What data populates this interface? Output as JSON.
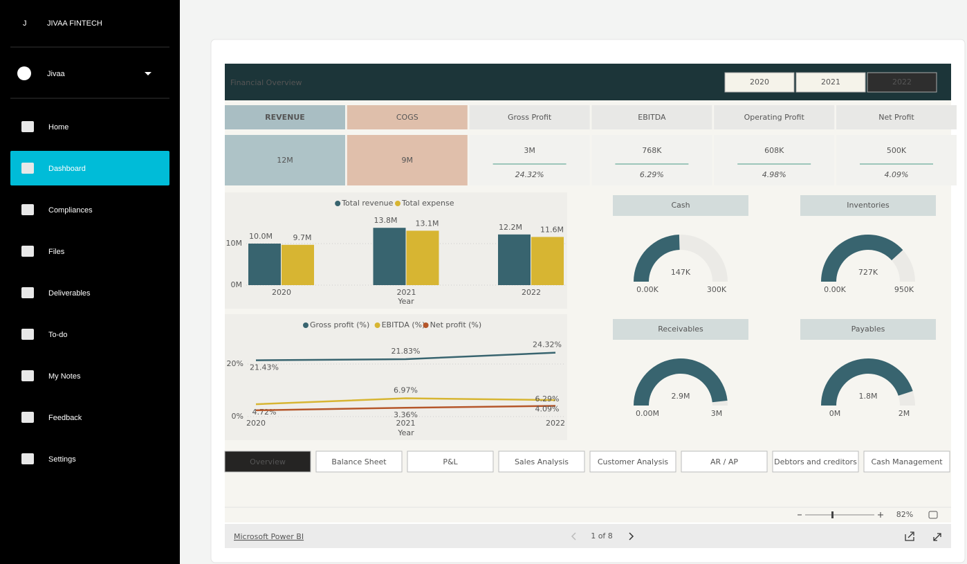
{
  "sidebar": {
    "brand_initial": "J",
    "brand": "JIVAA FINTECH",
    "user": "Jivaa",
    "nav": [
      "Home",
      "Dashboard",
      "Compliances",
      "Files",
      "Deliverables",
      "To-do",
      "My Notes",
      "Feedback",
      "Settings"
    ],
    "active_nav": 1
  },
  "report": {
    "title": "Financial Overview",
    "years": [
      "2020",
      "2021",
      "2022"
    ],
    "selected_year": 2,
    "kpis": [
      {
        "label": "REVENUE",
        "value": "12M"
      },
      {
        "label": "COGS",
        "value": "9M"
      },
      {
        "label": "Gross Profit",
        "value": "3M",
        "margin": "24.32%"
      },
      {
        "label": "EBITDA",
        "value": "768K",
        "margin": "6.29%"
      },
      {
        "label": "Operating Profit",
        "value": "608K",
        "margin": "4.98%"
      },
      {
        "label": "Net Profit",
        "value": "500K",
        "margin": "4.09%"
      }
    ],
    "tabs": [
      "Overview",
      "Balance Sheet",
      "P&L",
      "Sales Analysis",
      "Customer Analysis",
      "AR / AP",
      "Debtors and creditors",
      "Cash Management"
    ],
    "active_tab": 0,
    "zoom": "82%"
  },
  "footer": {
    "link": "Microsoft Power BI",
    "pages": "1 of 8"
  },
  "chart_data": [
    {
      "type": "bar",
      "x_label": "Year",
      "categories": [
        "2020",
        "2021",
        "2022"
      ],
      "series": [
        {
          "name": "Total revenue",
          "color": "#38646f",
          "values": [
            10,
            13.8,
            12.2
          ],
          "value_labels": [
            "10.0M",
            "13.8M",
            "12.2M"
          ]
        },
        {
          "name": "Total expense",
          "color": "#d7b532",
          "values": [
            9.7,
            13.1,
            11.6
          ],
          "value_labels": [
            "9.7M",
            "13.1M",
            "11.6M"
          ]
        }
      ],
      "ylim": [
        0,
        14.5
      ],
      "yticks": [
        {
          "value": 0,
          "label": "0M"
        },
        {
          "value": 10,
          "label": "10M"
        }
      ],
      "grid": true
    },
    {
      "type": "line",
      "x_label": "Year",
      "categories": [
        "2020",
        "2021",
        "2022"
      ],
      "series": [
        {
          "name": "Gross profit (%)",
          "color": "#38646f",
          "values": [
            21.43,
            21.83,
            24.32
          ],
          "value_labels": [
            "21.43%",
            "21.83%",
            "24.32%"
          ]
        },
        {
          "name": "EBITDA (%)",
          "color": "#d7b532",
          "values": [
            4.72,
            6.97,
            6.29
          ],
          "value_labels": [
            "4.72%",
            "6.97%",
            "6.29%"
          ]
        },
        {
          "name": "Net profit (%)",
          "color": "#b5562a",
          "values": [
            2.4,
            3.36,
            4.09
          ],
          "value_labels": [
            null,
            "3.36%",
            "4.09%"
          ]
        }
      ],
      "ylim": [
        0,
        28
      ],
      "yticks": [
        {
          "value": 0,
          "label": "0%"
        },
        {
          "value": 20,
          "label": "20%"
        }
      ],
      "grid": true
    },
    {
      "type": "gauge",
      "title": "Cash",
      "value": 147,
      "value_label": "147K",
      "min": {
        "value": 0,
        "label": "0.00K"
      },
      "max": {
        "value": 300,
        "label": "300K"
      },
      "color": "#38646f"
    },
    {
      "type": "gauge",
      "title": "Inventories",
      "value": 727,
      "value_label": "727K",
      "min": {
        "value": 0,
        "label": "0.00K"
      },
      "max": {
        "value": 950,
        "label": "950K"
      },
      "color": "#38646f"
    },
    {
      "type": "gauge",
      "title": "Receivables",
      "value": 2.9,
      "value_label": "2.9M",
      "min": {
        "value": 0,
        "label": "0.00M"
      },
      "max": {
        "value": 3,
        "label": "3M"
      },
      "color": "#38646f"
    },
    {
      "type": "gauge",
      "title": "Payables",
      "value": 1.8,
      "value_label": "1.8M",
      "min": {
        "value": 0,
        "label": "0M"
      },
      "max": {
        "value": 2,
        "label": "2M"
      },
      "color": "#38646f"
    }
  ]
}
